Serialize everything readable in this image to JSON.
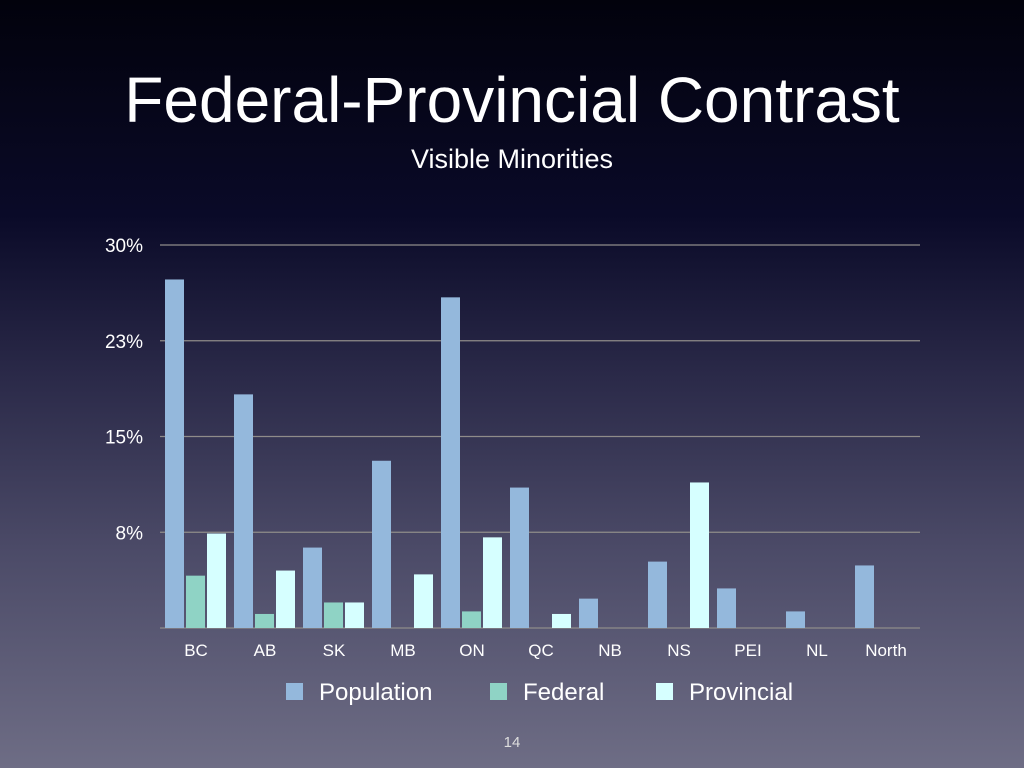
{
  "slide": {
    "title": "Federal-Provincial Contrast",
    "subtitle": "Visible Minorities",
    "page_number": "14"
  },
  "chart_data": {
    "type": "bar",
    "title": "Visible Minorities",
    "categories": [
      "BC",
      "AB",
      "SK",
      "MB",
      "ON",
      "QC",
      "NB",
      "NS",
      "PEI",
      "NL",
      "North"
    ],
    "series": [
      {
        "name": "Population",
        "color": "#94b8dc",
        "values": [
          27.3,
          18.3,
          6.3,
          13.1,
          25.9,
          11.0,
          2.3,
          5.2,
          3.1,
          1.3,
          4.9
        ]
      },
      {
        "name": "Federal",
        "color": "#8fd3c5",
        "values": [
          4.1,
          1.1,
          2.0,
          0,
          1.3,
          0,
          0,
          0,
          0,
          0,
          0
        ]
      },
      {
        "name": "Provincial",
        "color": "#d6ffff",
        "values": [
          7.4,
          4.5,
          2.0,
          4.2,
          7.1,
          1.1,
          0,
          11.4,
          0,
          0,
          0
        ]
      }
    ],
    "ylim": [
      0,
      30
    ],
    "yticks": [
      0,
      7.5,
      15,
      22.5,
      30
    ],
    "ytick_labels": [
      "",
      "8%",
      "15%",
      "23%",
      "30%"
    ],
    "grid": true,
    "legend": "bottom",
    "xlabel": "",
    "ylabel": ""
  }
}
